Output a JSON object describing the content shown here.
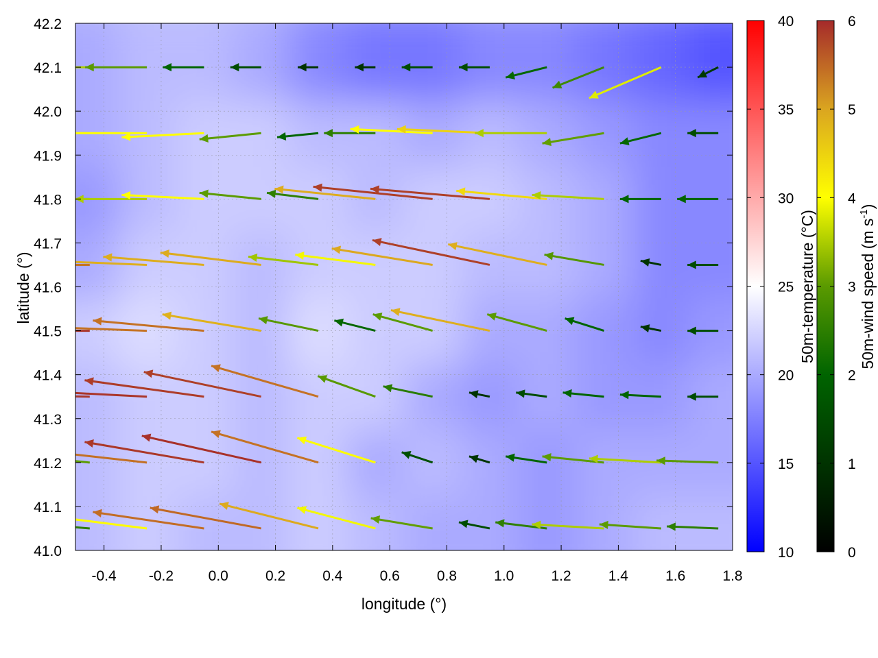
{
  "chart_data": {
    "type": "vector-field-heatmap",
    "xlabel": "longitude (°)",
    "ylabel": "latitude (°)",
    "xlim": [
      -0.5,
      1.8
    ],
    "ylim": [
      41.0,
      42.2
    ],
    "xticks": [
      "-0.4",
      "-0.2",
      "0.0",
      "0.2",
      "0.4",
      "0.6",
      "0.8",
      "1.0",
      "1.2",
      "1.4",
      "1.6",
      "1.8"
    ],
    "xtick_values": [
      -0.4,
      -0.2,
      0.0,
      0.2,
      0.4,
      0.6,
      0.8,
      1.0,
      1.2,
      1.4,
      1.6,
      1.8
    ],
    "yticks": [
      "41.0",
      "41.1",
      "41.2",
      "41.3",
      "41.4",
      "41.5",
      "41.6",
      "41.7",
      "41.8",
      "41.9",
      "42.0",
      "42.1",
      "42.2"
    ],
    "ytick_values": [
      41.0,
      41.1,
      41.2,
      41.3,
      41.4,
      41.5,
      41.6,
      41.7,
      41.8,
      41.9,
      42.0,
      42.1,
      42.2
    ],
    "grid": true,
    "temperature": {
      "label": "50m-temperature (°C)",
      "range": [
        10,
        40
      ],
      "ticks": [
        "10",
        "15",
        "20",
        "25",
        "30",
        "35",
        "40"
      ],
      "tick_values": [
        10,
        15,
        20,
        25,
        30,
        35,
        40
      ],
      "colors": {
        "low": "#0000ff",
        "mid": "#ffffff",
        "high": "#ff0000"
      },
      "lon": [
        -0.45,
        -0.25,
        -0.05,
        0.15,
        0.35,
        0.55,
        0.75,
        0.95,
        1.15,
        1.35,
        1.55,
        1.75
      ],
      "lat": [
        41.05,
        41.2,
        41.35,
        41.5,
        41.65,
        41.8,
        41.95,
        42.1
      ],
      "values": [
        [
          21,
          22,
          21,
          21,
          22,
          21,
          20,
          20,
          19,
          20,
          21,
          21
        ],
        [
          21,
          22,
          22,
          21,
          22,
          20,
          21,
          20,
          19,
          20,
          20,
          20
        ],
        [
          21,
          22,
          22,
          21,
          22,
          22,
          20,
          19,
          20,
          19,
          19,
          20
        ],
        [
          22,
          23,
          22,
          21,
          23,
          22,
          22,
          20,
          20,
          19,
          18,
          19
        ],
        [
          20,
          22,
          22,
          21,
          22,
          22,
          22,
          21,
          21,
          20,
          18,
          18
        ],
        [
          19,
          21,
          22,
          22,
          22,
          21,
          22,
          22,
          21,
          20,
          18,
          18
        ],
        [
          20,
          21,
          22,
          22,
          21,
          21,
          20,
          21,
          20,
          19,
          18,
          18
        ],
        [
          20,
          21,
          21,
          20,
          18,
          17,
          17,
          18,
          18,
          17,
          16,
          15
        ]
      ]
    },
    "wind": {
      "label": "50m-wind speed (m s-1)",
      "label_main": "50m-wind speed (m s",
      "label_sup": "-1",
      "label_end": ")",
      "range": [
        0,
        6
      ],
      "ticks": [
        "0",
        "1",
        "2",
        "3",
        "4",
        "5",
        "6"
      ],
      "tick_values": [
        0,
        1,
        2,
        3,
        4,
        5,
        6
      ],
      "colors": [
        "#000000",
        "#003300",
        "#006400",
        "#5a9a00",
        "#ffff00",
        "#daa520",
        "#a52a2a"
      ],
      "lon": [
        -0.45,
        -0.25,
        -0.05,
        0.15,
        0.35,
        0.55,
        0.75,
        0.95,
        1.15,
        1.35,
        1.55,
        1.75
      ],
      "lat": [
        41.05,
        41.2,
        41.35,
        41.5,
        41.65,
        41.8,
        41.95,
        42.1
      ],
      "u": [
        [
          -2.5,
          -4,
          -5.4,
          -5.4,
          -4.8,
          -3.8,
          -3,
          -1.5,
          -2.5,
          -3.5,
          -3,
          -2.5
        ],
        [
          -3,
          -5.4,
          -5.8,
          -5.8,
          -5.2,
          -3.8,
          -1.5,
          -1,
          -2,
          -3,
          -3.5,
          -3
        ],
        [
          -5.9,
          -5.9,
          -5.8,
          -5.7,
          -5.2,
          -2.8,
          -2.4,
          -1,
          -1.5,
          -2,
          -2,
          -1.5
        ],
        [
          -5.9,
          -5.4,
          -5.4,
          -4.8,
          -2.9,
          -2,
          -2.9,
          -4.8,
          -2.9,
          -1.9,
          -1,
          -1.5
        ],
        [
          -5.4,
          -4.9,
          -4.9,
          -4.9,
          -3.4,
          -3.9,
          -4.9,
          -5.7,
          -4.8,
          -2.9,
          -1,
          -1.5
        ],
        [
          -3,
          -3.5,
          -4,
          -3,
          -2.5,
          -4.9,
          -5.8,
          -5.8,
          -4.4,
          -3.5,
          -2,
          -2
        ],
        [
          -3.5,
          -4,
          -4,
          -3,
          -2,
          -2.5,
          -4,
          -4.5,
          -3.5,
          -3,
          -2,
          -1.5
        ],
        [
          -3.5,
          -3,
          -2,
          -1.5,
          -1,
          -1,
          -1.5,
          -1.5,
          -2,
          -2.5,
          -3.5,
          -1
        ]
      ],
      "v": [
        [
          0.2,
          0.5,
          0.8,
          1,
          1.2,
          1,
          0.5,
          0.3,
          0.3,
          0.2,
          0.2,
          0.1
        ],
        [
          0.3,
          0.6,
          1,
          1.3,
          1.5,
          1.2,
          0.5,
          0.3,
          0.3,
          0.3,
          0.2,
          0.1
        ],
        [
          0.1,
          0.3,
          0.8,
          1.2,
          1.5,
          1,
          0.5,
          0.2,
          0.2,
          0.2,
          0.1,
          0
        ],
        [
          0,
          0.2,
          0.5,
          0.8,
          0.6,
          0.5,
          0.8,
          1,
          0.8,
          0.6,
          0.2,
          0
        ],
        [
          0,
          0.2,
          0.4,
          0.6,
          0.4,
          0.5,
          0.8,
          1.2,
          1,
          0.5,
          0.2,
          0
        ],
        [
          0,
          0,
          0.2,
          0.3,
          0.3,
          0.5,
          0.6,
          0.5,
          0.4,
          0.2,
          0,
          0
        ],
        [
          0,
          0,
          -0.2,
          -0.3,
          -0.2,
          0,
          0.2,
          0.2,
          0,
          -0.5,
          -0.5,
          0
        ],
        [
          0,
          0,
          0,
          0,
          0,
          0,
          0,
          0,
          -0.5,
          -1,
          -1.5,
          -0.5
        ]
      ]
    }
  }
}
